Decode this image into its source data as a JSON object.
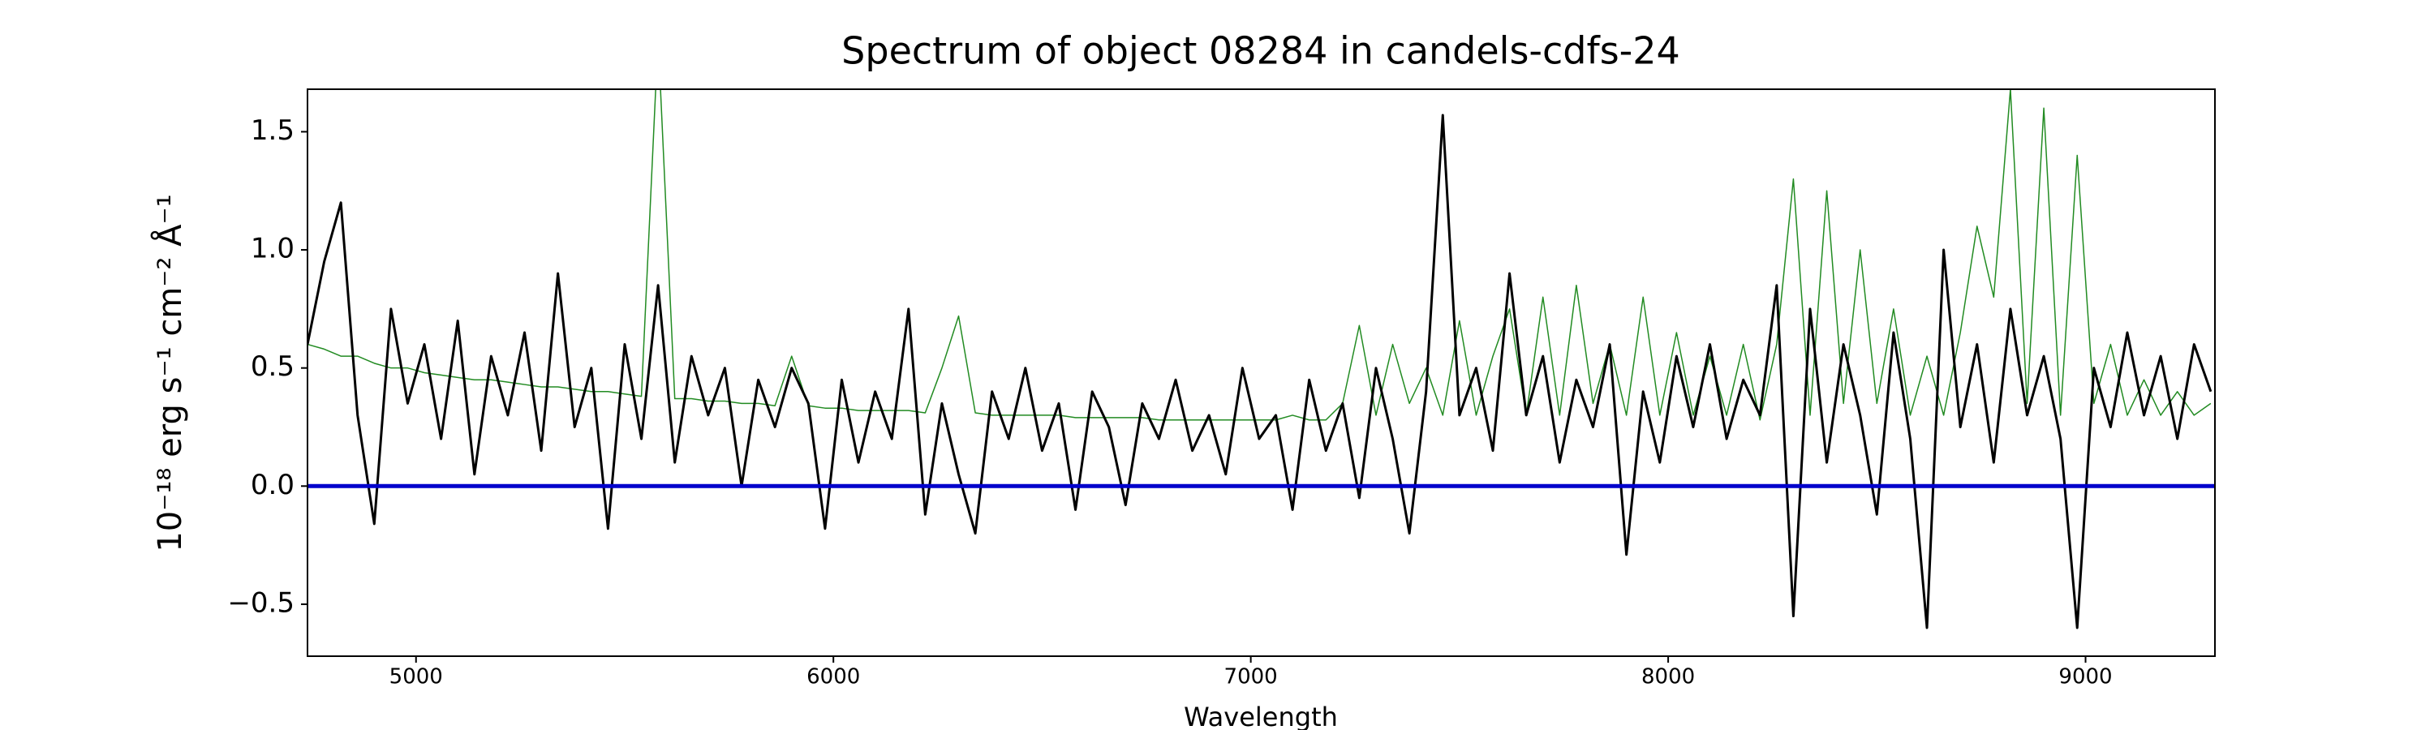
{
  "chart_data": {
    "type": "line",
    "title": "Spectrum of object 08284 in candels-cdfs-24",
    "x_label": "Wavelength",
    "y_label": "10⁻¹⁸ erg s⁻¹ cm⁻² Å⁻¹",
    "xlim": [
      4740,
      9310
    ],
    "ylim": [
      -0.72,
      1.68
    ],
    "xticks": [
      5000,
      6000,
      7000,
      8000,
      9000
    ],
    "yticks": [
      {
        "value": -0.5,
        "label": "−0.5"
      },
      {
        "value": 0,
        "label": "0.0"
      },
      0.5,
      {
        "value": 1,
        "label": "1.0"
      },
      1.5
    ],
    "grid": false,
    "hline": {
      "value": 0,
      "color": "#0000cc"
    },
    "x": [
      4740,
      4780,
      4820,
      4860,
      4900,
      4940,
      4980,
      5020,
      5060,
      5100,
      5140,
      5180,
      5220,
      5260,
      5300,
      5340,
      5380,
      5420,
      5460,
      5500,
      5540,
      5580,
      5620,
      5660,
      5700,
      5740,
      5780,
      5820,
      5860,
      5900,
      5940,
      5980,
      6020,
      6060,
      6100,
      6140,
      6180,
      6220,
      6260,
      6300,
      6340,
      6380,
      6420,
      6460,
      6500,
      6540,
      6580,
      6620,
      6660,
      6700,
      6740,
      6780,
      6820,
      6860,
      6900,
      6940,
      6980,
      7020,
      7060,
      7100,
      7140,
      7180,
      7220,
      7260,
      7300,
      7340,
      7380,
      7420,
      7460,
      7500,
      7540,
      7580,
      7620,
      7660,
      7700,
      7740,
      7780,
      7820,
      7860,
      7900,
      7940,
      7980,
      8020,
      8060,
      8100,
      8140,
      8180,
      8220,
      8260,
      8300,
      8340,
      8380,
      8420,
      8460,
      8500,
      8540,
      8580,
      8620,
      8660,
      8700,
      8740,
      8780,
      8820,
      8860,
      8900,
      8940,
      8980,
      9020,
      9060,
      9100,
      9140,
      9180,
      9220,
      9260,
      9300
    ],
    "series": [
      {
        "color": "#228b22",
        "width": 1.5,
        "values": [
          0.6,
          0.58,
          0.55,
          0.55,
          0.52,
          0.5,
          0.5,
          0.48,
          0.47,
          0.46,
          0.45,
          0.45,
          0.44,
          0.43,
          0.42,
          0.42,
          0.41,
          0.4,
          0.4,
          0.39,
          0.38,
          1.9,
          0.37,
          0.37,
          0.36,
          0.36,
          0.35,
          0.35,
          0.34,
          0.55,
          0.34,
          0.33,
          0.33,
          0.32,
          0.32,
          0.32,
          0.32,
          0.31,
          0.5,
          0.72,
          0.31,
          0.3,
          0.3,
          0.3,
          0.3,
          0.3,
          0.29,
          0.29,
          0.29,
          0.29,
          0.29,
          0.28,
          0.28,
          0.28,
          0.28,
          0.28,
          0.28,
          0.28,
          0.28,
          0.3,
          0.28,
          0.28,
          0.35,
          0.68,
          0.3,
          0.6,
          0.35,
          0.5,
          0.3,
          0.7,
          0.3,
          0.55,
          0.75,
          0.3,
          0.8,
          0.3,
          0.85,
          0.35,
          0.6,
          0.3,
          0.8,
          0.3,
          0.65,
          0.3,
          0.55,
          0.3,
          0.6,
          0.28,
          0.6,
          1.3,
          0.3,
          1.25,
          0.35,
          1.0,
          0.35,
          0.75,
          0.3,
          0.55,
          0.3,
          0.65,
          1.1,
          0.8,
          1.68,
          0.35,
          1.6,
          0.3,
          1.4,
          0.35,
          0.6,
          0.3,
          0.45,
          0.3,
          0.4,
          0.3,
          0.35
        ]
      },
      {
        "color": "#000000",
        "width": 3,
        "values": [
          0.6,
          0.95,
          1.2,
          0.3,
          -0.16,
          0.75,
          0.35,
          0.6,
          0.2,
          0.7,
          0.05,
          0.55,
          0.3,
          0.65,
          0.15,
          0.9,
          0.25,
          0.5,
          -0.18,
          0.6,
          0.2,
          0.85,
          0.1,
          0.55,
          0.3,
          0.5,
          0.0,
          0.45,
          0.25,
          0.5,
          0.35,
          -0.18,
          0.45,
          0.1,
          0.4,
          0.2,
          0.75,
          -0.12,
          0.35,
          0.05,
          -0.2,
          0.4,
          0.2,
          0.5,
          0.15,
          0.35,
          -0.1,
          0.4,
          0.25,
          -0.08,
          0.35,
          0.2,
          0.45,
          0.15,
          0.3,
          0.05,
          0.5,
          0.2,
          0.3,
          -0.1,
          0.45,
          0.15,
          0.35,
          -0.05,
          0.5,
          0.2,
          -0.2,
          0.4,
          1.57,
          0.3,
          0.5,
          0.15,
          0.9,
          0.3,
          0.55,
          0.1,
          0.45,
          0.25,
          0.6,
          -0.29,
          0.4,
          0.1,
          0.55,
          0.25,
          0.6,
          0.2,
          0.45,
          0.3,
          0.85,
          -0.55,
          0.75,
          0.1,
          0.6,
          0.3,
          -0.12,
          0.65,
          0.2,
          -0.6,
          1.0,
          0.25,
          0.6,
          0.1,
          0.75,
          0.3,
          0.55,
          0.2,
          -0.6,
          0.5,
          0.25,
          0.65,
          0.3,
          0.55,
          0.2,
          0.6,
          0.4
        ]
      }
    ]
  }
}
